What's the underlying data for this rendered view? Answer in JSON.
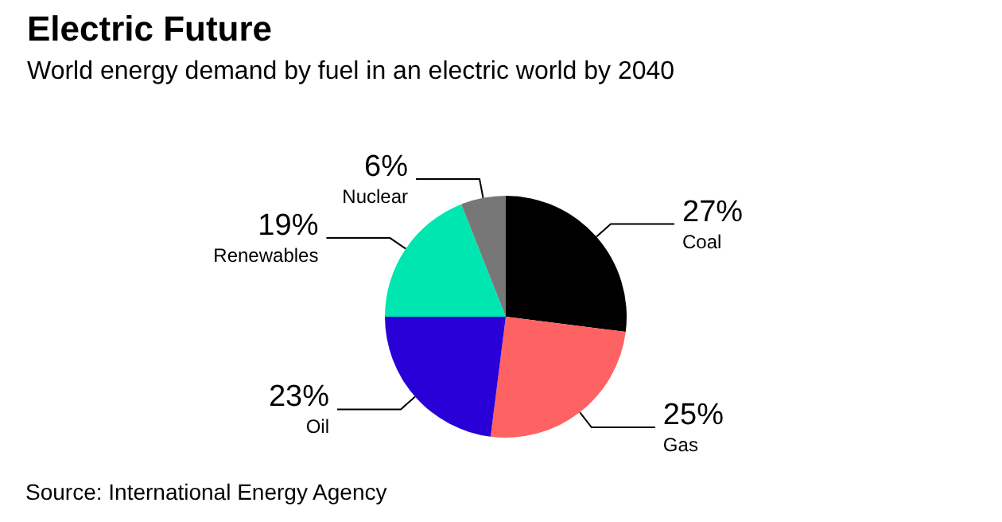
{
  "chart_data": {
    "type": "pie",
    "title": "Electric Future",
    "subtitle": "World energy demand by fuel in an electric world by 2040",
    "categories": [
      "Coal",
      "Gas",
      "Oil",
      "Renewables",
      "Nuclear"
    ],
    "values": [
      27,
      25,
      23,
      19,
      6
    ],
    "value_labels": [
      "27%",
      "25%",
      "23%",
      "19%",
      "6%"
    ],
    "colors": [
      "#000000",
      "#ff6262",
      "#2a00d8",
      "#00e6b0",
      "#777777"
    ],
    "annotations": [
      "Source: International Energy Agency"
    ],
    "legend": false
  }
}
